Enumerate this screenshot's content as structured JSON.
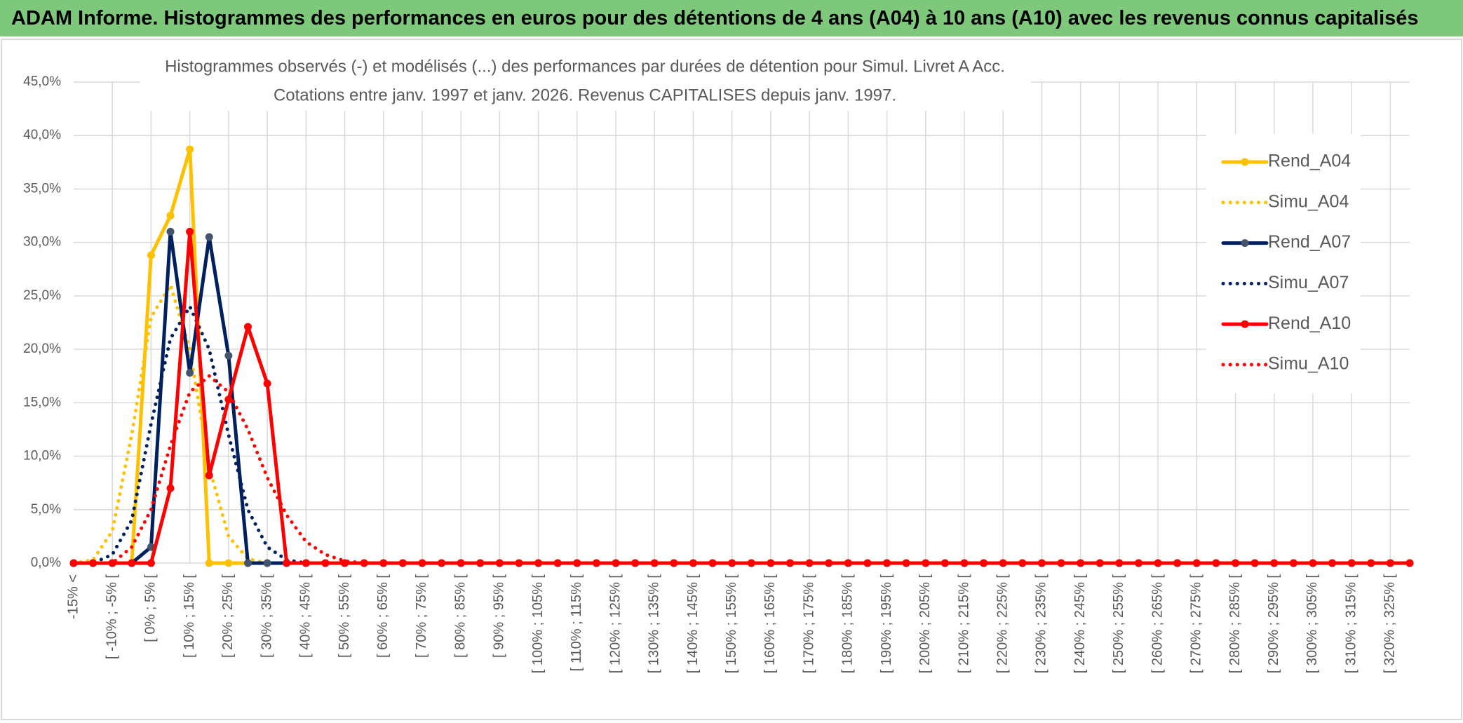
{
  "header": {
    "title": "ADAM Informe. Histogrammes des performances en euros pour des détentions de 4 ans (A04) à 10 ans (A10) avec les revenus connus capitalisés"
  },
  "chart_data": {
    "type": "line",
    "title": "Histogrammes observés (-) et modélisés (...) des performances par durées de détention pour Simul. Livret A Acc.",
    "subtitle": "Cotations entre janv. 1997 et janv. 2026. Revenus CAPITALISES depuis janv. 1997.",
    "categories": [
      "-15% <",
      null,
      "[ -10% ; -5% [",
      null,
      "[ 0% ; 5% [",
      null,
      "[ 10% ; 15% [",
      null,
      "[ 20% ; 25% [",
      null,
      "[ 30% ; 35% [",
      null,
      "[ 40% ; 45% [",
      null,
      "[ 50% ; 55% [",
      null,
      "[ 60% ; 65% [",
      null,
      "[ 70% ; 75% [",
      null,
      "[ 80% ; 85% [",
      null,
      "[ 90% ; 95% [",
      null,
      "[ 100% ; 105% [",
      null,
      "[ 110% ; 115% [",
      null,
      "[ 120% ; 125% [",
      null,
      "[ 130% ; 135% [",
      null,
      "[ 140% ; 145% [",
      null,
      "[ 150% ; 155% [",
      null,
      "[ 160% ; 165% [",
      null,
      "[ 170% ; 175% [",
      null,
      "[ 180% ; 185% [",
      null,
      "[ 190% ; 195% [",
      null,
      "[ 200% ; 205% [",
      null,
      "[ 210% ; 215% [",
      null,
      "[ 220% ; 225% [",
      null,
      "[ 230% ; 235% [",
      null,
      "[ 240% ; 245% [",
      null,
      "[ 250% ; 255% [",
      null,
      "[ 260% ; 265% [",
      null,
      "[ 270% ; 275% [",
      null,
      "[ 280% ; 285% [",
      null,
      "[ 290% ; 295% [",
      null,
      "[ 300% ; 305% [",
      null,
      "[ 310% ; 315% [",
      null,
      "[ 320% ; 325% [",
      null
    ],
    "series": [
      {
        "name": "Rend_A04",
        "color": "#FFC000",
        "line_style": "solid",
        "values": [
          0,
          0,
          0,
          0,
          28.8,
          32.5,
          38.7,
          0,
          0,
          0,
          0,
          0,
          0,
          0,
          0,
          0,
          0,
          0,
          0,
          0,
          0,
          0,
          0,
          0,
          0,
          0,
          0,
          0,
          0,
          0,
          0,
          0,
          0,
          0,
          0,
          0,
          0,
          0,
          0,
          0,
          0,
          0,
          0,
          0,
          0,
          0,
          0,
          0,
          0,
          0,
          0,
          0,
          0,
          0,
          0,
          0,
          0,
          0,
          0,
          0,
          0,
          0,
          0,
          0,
          0,
          0,
          0,
          0,
          0,
          0
        ]
      },
      {
        "name": "Simu_A04",
        "color": "#FFC000",
        "line_style": "dotted",
        "values": [
          0,
          0.3,
          3,
          12,
          23,
          26,
          20,
          9,
          2.5,
          0.4,
          0,
          0,
          0,
          0,
          0,
          0,
          0,
          0,
          0,
          0,
          0,
          0,
          0,
          0,
          0,
          0,
          0,
          0,
          0,
          0,
          0,
          0,
          0,
          0,
          0,
          0,
          0,
          0,
          0,
          0,
          0,
          0,
          0,
          0,
          0,
          0,
          0,
          0,
          0,
          0,
          0,
          0,
          0,
          0,
          0,
          0,
          0,
          0,
          0,
          0,
          0,
          0,
          0,
          0,
          0,
          0,
          0,
          0,
          0,
          0
        ]
      },
      {
        "name": "Rend_A07",
        "color": "#002060",
        "line_style": "solid",
        "values": [
          0,
          0,
          0,
          0,
          1.5,
          31,
          17.8,
          30.5,
          19.4,
          0,
          0,
          0,
          0,
          0,
          0,
          0,
          0,
          0,
          0,
          0,
          0,
          0,
          0,
          0,
          0,
          0,
          0,
          0,
          0,
          0,
          0,
          0,
          0,
          0,
          0,
          0,
          0,
          0,
          0,
          0,
          0,
          0,
          0,
          0,
          0,
          0,
          0,
          0,
          0,
          0,
          0,
          0,
          0,
          0,
          0,
          0,
          0,
          0,
          0,
          0,
          0,
          0,
          0,
          0,
          0,
          0,
          0,
          0,
          0,
          0
        ]
      },
      {
        "name": "Simu_A07",
        "color": "#002060",
        "line_style": "dotted",
        "values": [
          0,
          0,
          0.8,
          4,
          13,
          21,
          24,
          20,
          12,
          5,
          1.5,
          0.3,
          0,
          0,
          0,
          0,
          0,
          0,
          0,
          0,
          0,
          0,
          0,
          0,
          0,
          0,
          0,
          0,
          0,
          0,
          0,
          0,
          0,
          0,
          0,
          0,
          0,
          0,
          0,
          0,
          0,
          0,
          0,
          0,
          0,
          0,
          0,
          0,
          0,
          0,
          0,
          0,
          0,
          0,
          0,
          0,
          0,
          0,
          0,
          0,
          0,
          0,
          0,
          0,
          0,
          0,
          0,
          0,
          0,
          0
        ]
      },
      {
        "name": "Rend_A10",
        "color": "#FF0000",
        "line_style": "solid",
        "values": [
          0,
          0,
          0,
          0,
          0,
          7,
          31,
          8.2,
          15.3,
          22.1,
          16.8,
          0,
          0,
          0,
          0,
          0,
          0,
          0,
          0,
          0,
          0,
          0,
          0,
          0,
          0,
          0,
          0,
          0,
          0,
          0,
          0,
          0,
          0,
          0,
          0,
          0,
          0,
          0,
          0,
          0,
          0,
          0,
          0,
          0,
          0,
          0,
          0,
          0,
          0,
          0,
          0,
          0,
          0,
          0,
          0,
          0,
          0,
          0,
          0,
          0,
          0,
          0,
          0,
          0,
          0,
          0,
          0,
          0,
          0,
          0
        ]
      },
      {
        "name": "Simu_A10",
        "color": "#FF0000",
        "line_style": "dotted",
        "values": [
          0,
          0,
          0,
          1.5,
          5,
          11,
          16,
          17.5,
          16,
          12.5,
          8,
          4.5,
          2,
          0.8,
          0.2,
          0,
          0,
          0,
          0,
          0,
          0,
          0,
          0,
          0,
          0,
          0,
          0,
          0,
          0,
          0,
          0,
          0,
          0,
          0,
          0,
          0,
          0,
          0,
          0,
          0,
          0,
          0,
          0,
          0,
          0,
          0,
          0,
          0,
          0,
          0,
          0,
          0,
          0,
          0,
          0,
          0,
          0,
          0,
          0,
          0,
          0,
          0,
          0,
          0,
          0,
          0,
          0,
          0,
          0,
          0
        ]
      }
    ],
    "ylim": [
      0,
      45
    ],
    "yticks": [
      {
        "value": 0,
        "label": "0,0%"
      },
      {
        "value": 5,
        "label": "5,0%"
      },
      {
        "value": 10,
        "label": "10,0%"
      },
      {
        "value": 15,
        "label": "15,0%"
      },
      {
        "value": 20,
        "label": "20,0%"
      },
      {
        "value": 25,
        "label": "25,0%"
      },
      {
        "value": 30,
        "label": "30,0%"
      },
      {
        "value": 35,
        "label": "35,0%"
      },
      {
        "value": 40,
        "label": "40,0%"
      },
      {
        "value": 45,
        "label": "45,0%"
      }
    ],
    "grid": true,
    "legend": "right"
  }
}
